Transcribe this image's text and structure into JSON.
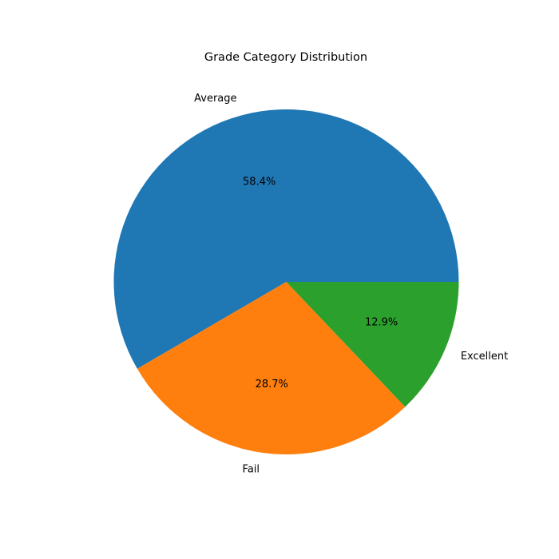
{
  "chart_data": {
    "type": "pie",
    "title": "Grade Category Distribution",
    "start_angle_deg": 0,
    "direction": "counterclockwise",
    "slices": [
      {
        "label": "Average",
        "value": 58.4,
        "pct_label": "58.4%",
        "color": "#1f77b4"
      },
      {
        "label": "Fail",
        "value": 28.7,
        "pct_label": "28.7%",
        "color": "#ff7f0e"
      },
      {
        "label": "Excellent",
        "value": 12.9,
        "pct_label": "12.9%",
        "color": "#2ca02c"
      }
    ],
    "legend": "none",
    "grid": false
  }
}
